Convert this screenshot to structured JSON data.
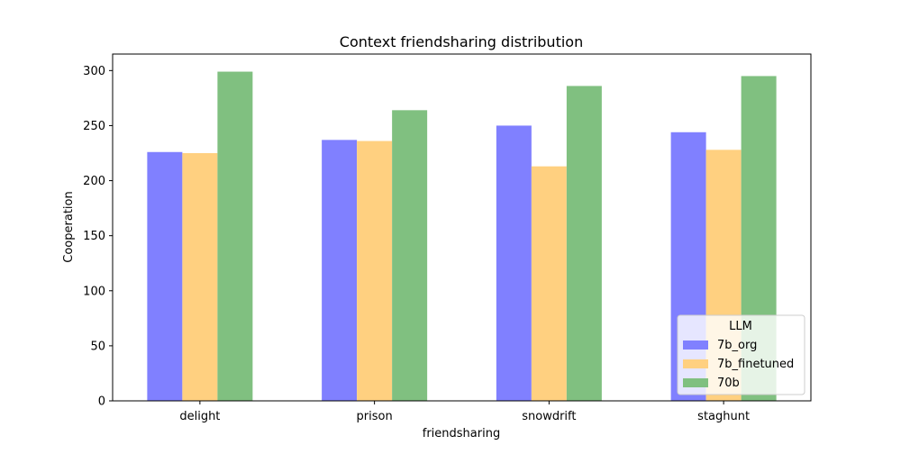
{
  "chart_data": {
    "type": "bar",
    "title": "Context friendsharing distribution",
    "xlabel": "friendsharing",
    "ylabel": "Cooperation",
    "categories": [
      "delight",
      "prison",
      "snowdrift",
      "staghunt"
    ],
    "series": [
      {
        "name": "7b_org",
        "values": [
          226,
          237,
          250,
          244
        ],
        "color": "#8080ff"
      },
      {
        "name": "7b_finetuned",
        "values": [
          225,
          236,
          213,
          228
        ],
        "color": "#ffd080"
      },
      {
        "name": "70b",
        "values": [
          299,
          264,
          286,
          295
        ],
        "color": "#80c080"
      }
    ],
    "ylim": [
      0,
      315
    ],
    "yticks": [
      0,
      50,
      100,
      150,
      200,
      250,
      300
    ],
    "grid": false,
    "legend": {
      "title": "LLM",
      "placement": "lower-right"
    }
  }
}
